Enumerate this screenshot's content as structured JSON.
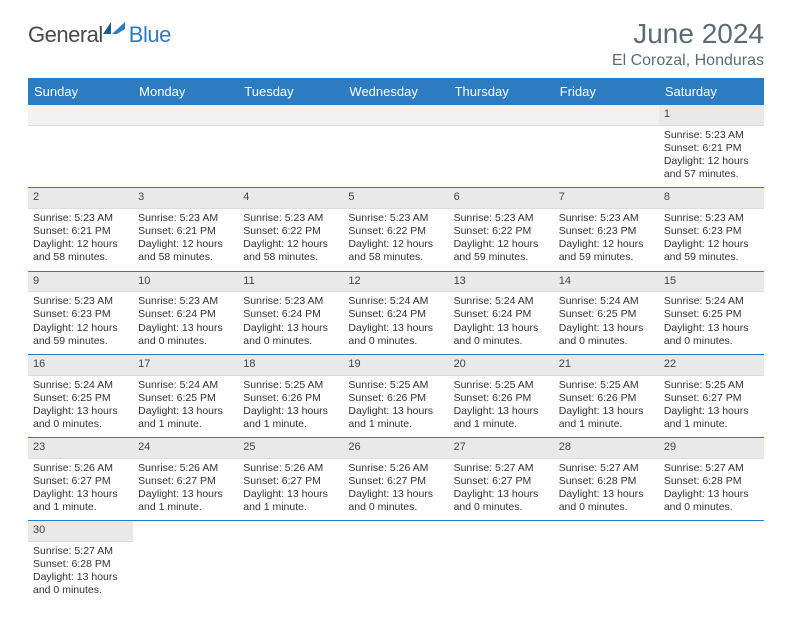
{
  "brand": {
    "part1": "General",
    "part2": "Blue"
  },
  "title": "June 2024",
  "location": "El Corozal, Honduras",
  "colors": {
    "header_bg": "#2d7bc1",
    "header_text": "#ffffff",
    "daynum_bg": "#e9e9e9",
    "week_border": "#2d7bc1",
    "text": "#333333",
    "title_text": "#5d6b76"
  },
  "dow": [
    "Sunday",
    "Monday",
    "Tuesday",
    "Wednesday",
    "Thursday",
    "Friday",
    "Saturday"
  ],
  "days": {
    "1": {
      "sunrise": "5:23 AM",
      "sunset": "6:21 PM",
      "daylight": "12 hours and 57 minutes."
    },
    "2": {
      "sunrise": "5:23 AM",
      "sunset": "6:21 PM",
      "daylight": "12 hours and 58 minutes."
    },
    "3": {
      "sunrise": "5:23 AM",
      "sunset": "6:21 PM",
      "daylight": "12 hours and 58 minutes."
    },
    "4": {
      "sunrise": "5:23 AM",
      "sunset": "6:22 PM",
      "daylight": "12 hours and 58 minutes."
    },
    "5": {
      "sunrise": "5:23 AM",
      "sunset": "6:22 PM",
      "daylight": "12 hours and 58 minutes."
    },
    "6": {
      "sunrise": "5:23 AM",
      "sunset": "6:22 PM",
      "daylight": "12 hours and 59 minutes."
    },
    "7": {
      "sunrise": "5:23 AM",
      "sunset": "6:23 PM",
      "daylight": "12 hours and 59 minutes."
    },
    "8": {
      "sunrise": "5:23 AM",
      "sunset": "6:23 PM",
      "daylight": "12 hours and 59 minutes."
    },
    "9": {
      "sunrise": "5:23 AM",
      "sunset": "6:23 PM",
      "daylight": "12 hours and 59 minutes."
    },
    "10": {
      "sunrise": "5:23 AM",
      "sunset": "6:24 PM",
      "daylight": "13 hours and 0 minutes."
    },
    "11": {
      "sunrise": "5:23 AM",
      "sunset": "6:24 PM",
      "daylight": "13 hours and 0 minutes."
    },
    "12": {
      "sunrise": "5:24 AM",
      "sunset": "6:24 PM",
      "daylight": "13 hours and 0 minutes."
    },
    "13": {
      "sunrise": "5:24 AM",
      "sunset": "6:24 PM",
      "daylight": "13 hours and 0 minutes."
    },
    "14": {
      "sunrise": "5:24 AM",
      "sunset": "6:25 PM",
      "daylight": "13 hours and 0 minutes."
    },
    "15": {
      "sunrise": "5:24 AM",
      "sunset": "6:25 PM",
      "daylight": "13 hours and 0 minutes."
    },
    "16": {
      "sunrise": "5:24 AM",
      "sunset": "6:25 PM",
      "daylight": "13 hours and 0 minutes."
    },
    "17": {
      "sunrise": "5:24 AM",
      "sunset": "6:25 PM",
      "daylight": "13 hours and 1 minute."
    },
    "18": {
      "sunrise": "5:25 AM",
      "sunset": "6:26 PM",
      "daylight": "13 hours and 1 minute."
    },
    "19": {
      "sunrise": "5:25 AM",
      "sunset": "6:26 PM",
      "daylight": "13 hours and 1 minute."
    },
    "20": {
      "sunrise": "5:25 AM",
      "sunset": "6:26 PM",
      "daylight": "13 hours and 1 minute."
    },
    "21": {
      "sunrise": "5:25 AM",
      "sunset": "6:26 PM",
      "daylight": "13 hours and 1 minute."
    },
    "22": {
      "sunrise": "5:25 AM",
      "sunset": "6:27 PM",
      "daylight": "13 hours and 1 minute."
    },
    "23": {
      "sunrise": "5:26 AM",
      "sunset": "6:27 PM",
      "daylight": "13 hours and 1 minute."
    },
    "24": {
      "sunrise": "5:26 AM",
      "sunset": "6:27 PM",
      "daylight": "13 hours and 1 minute."
    },
    "25": {
      "sunrise": "5:26 AM",
      "sunset": "6:27 PM",
      "daylight": "13 hours and 1 minute."
    },
    "26": {
      "sunrise": "5:26 AM",
      "sunset": "6:27 PM",
      "daylight": "13 hours and 0 minutes."
    },
    "27": {
      "sunrise": "5:27 AM",
      "sunset": "6:27 PM",
      "daylight": "13 hours and 0 minutes."
    },
    "28": {
      "sunrise": "5:27 AM",
      "sunset": "6:28 PM",
      "daylight": "13 hours and 0 minutes."
    },
    "29": {
      "sunrise": "5:27 AM",
      "sunset": "6:28 PM",
      "daylight": "13 hours and 0 minutes."
    },
    "30": {
      "sunrise": "5:27 AM",
      "sunset": "6:28 PM",
      "daylight": "13 hours and 0 minutes."
    }
  },
  "labels": {
    "sunrise": "Sunrise:",
    "sunset": "Sunset:",
    "daylight": "Daylight:"
  },
  "grid": [
    [
      null,
      null,
      null,
      null,
      null,
      null,
      "1"
    ],
    [
      "2",
      "3",
      "4",
      "5",
      "6",
      "7",
      "8"
    ],
    [
      "9",
      "10",
      "11",
      "12",
      "13",
      "14",
      "15"
    ],
    [
      "16",
      "17",
      "18",
      "19",
      "20",
      "21",
      "22"
    ],
    [
      "23",
      "24",
      "25",
      "26",
      "27",
      "28",
      "29"
    ],
    [
      "30",
      null,
      null,
      null,
      null,
      null,
      null
    ]
  ]
}
